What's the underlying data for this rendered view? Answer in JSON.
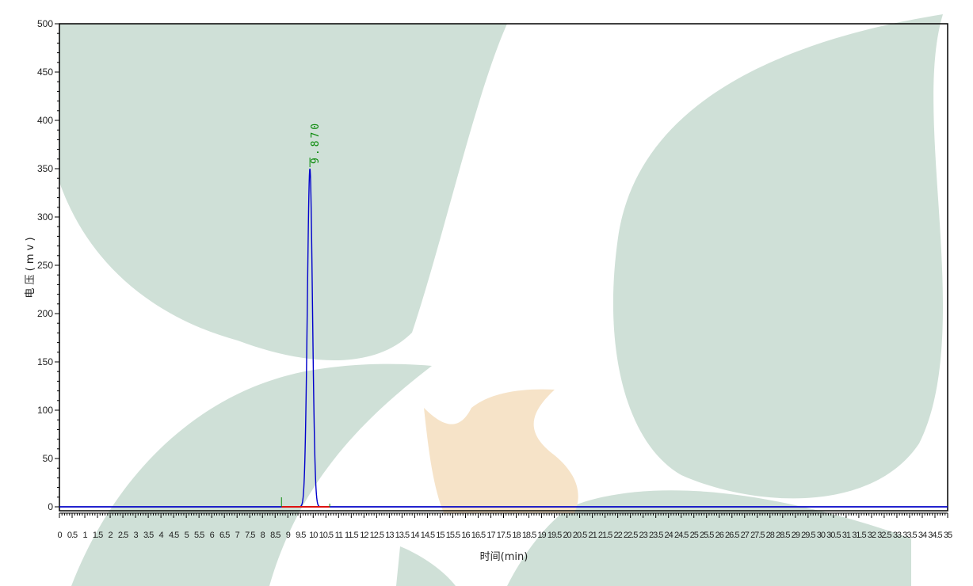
{
  "chart_data": {
    "type": "line",
    "title": "",
    "xlabel": "时间(min)",
    "ylabel": "电 压 ( m v )",
    "xlim": [
      0,
      35
    ],
    "ylim": [
      0,
      500
    ],
    "x_ticks": [
      0,
      0.5,
      1,
      1.5,
      2,
      2.5,
      3,
      3.5,
      4,
      4.5,
      5,
      5.5,
      6,
      6.5,
      7,
      7.5,
      8,
      8.5,
      9,
      9.5,
      10,
      10.5,
      11,
      11.5,
      12,
      12.5,
      13,
      13.5,
      14,
      14.5,
      15,
      15.5,
      16,
      16.5,
      17,
      17.5,
      18,
      18.5,
      19,
      19.5,
      20,
      20.5,
      21,
      21.5,
      22,
      22.5,
      23,
      23.5,
      24,
      24.5,
      25,
      25.5,
      26,
      26.5,
      27,
      27.5,
      28,
      28.5,
      29,
      29.5,
      30,
      30.5,
      31,
      31.5,
      32,
      32.5,
      33,
      33.5,
      34,
      34.5,
      35
    ],
    "y_ticks": [
      0,
      50,
      100,
      150,
      200,
      250,
      300,
      350,
      400,
      450,
      500
    ],
    "grid": false,
    "series": [
      {
        "color": "#0000cc",
        "peak": {
          "retention_time": 9.87,
          "height": 350,
          "sigma": 0.1,
          "label": "9.870"
        }
      }
    ],
    "baseline": {
      "x_start": 8.75,
      "x_end": 10.65,
      "color": "#dd1111"
    },
    "peak_marker_color": "#0a8a0a",
    "colors": {
      "axis": "#000000",
      "watermark_green": "#cfe0d7",
      "watermark_orange": "#f6e3c8"
    }
  }
}
